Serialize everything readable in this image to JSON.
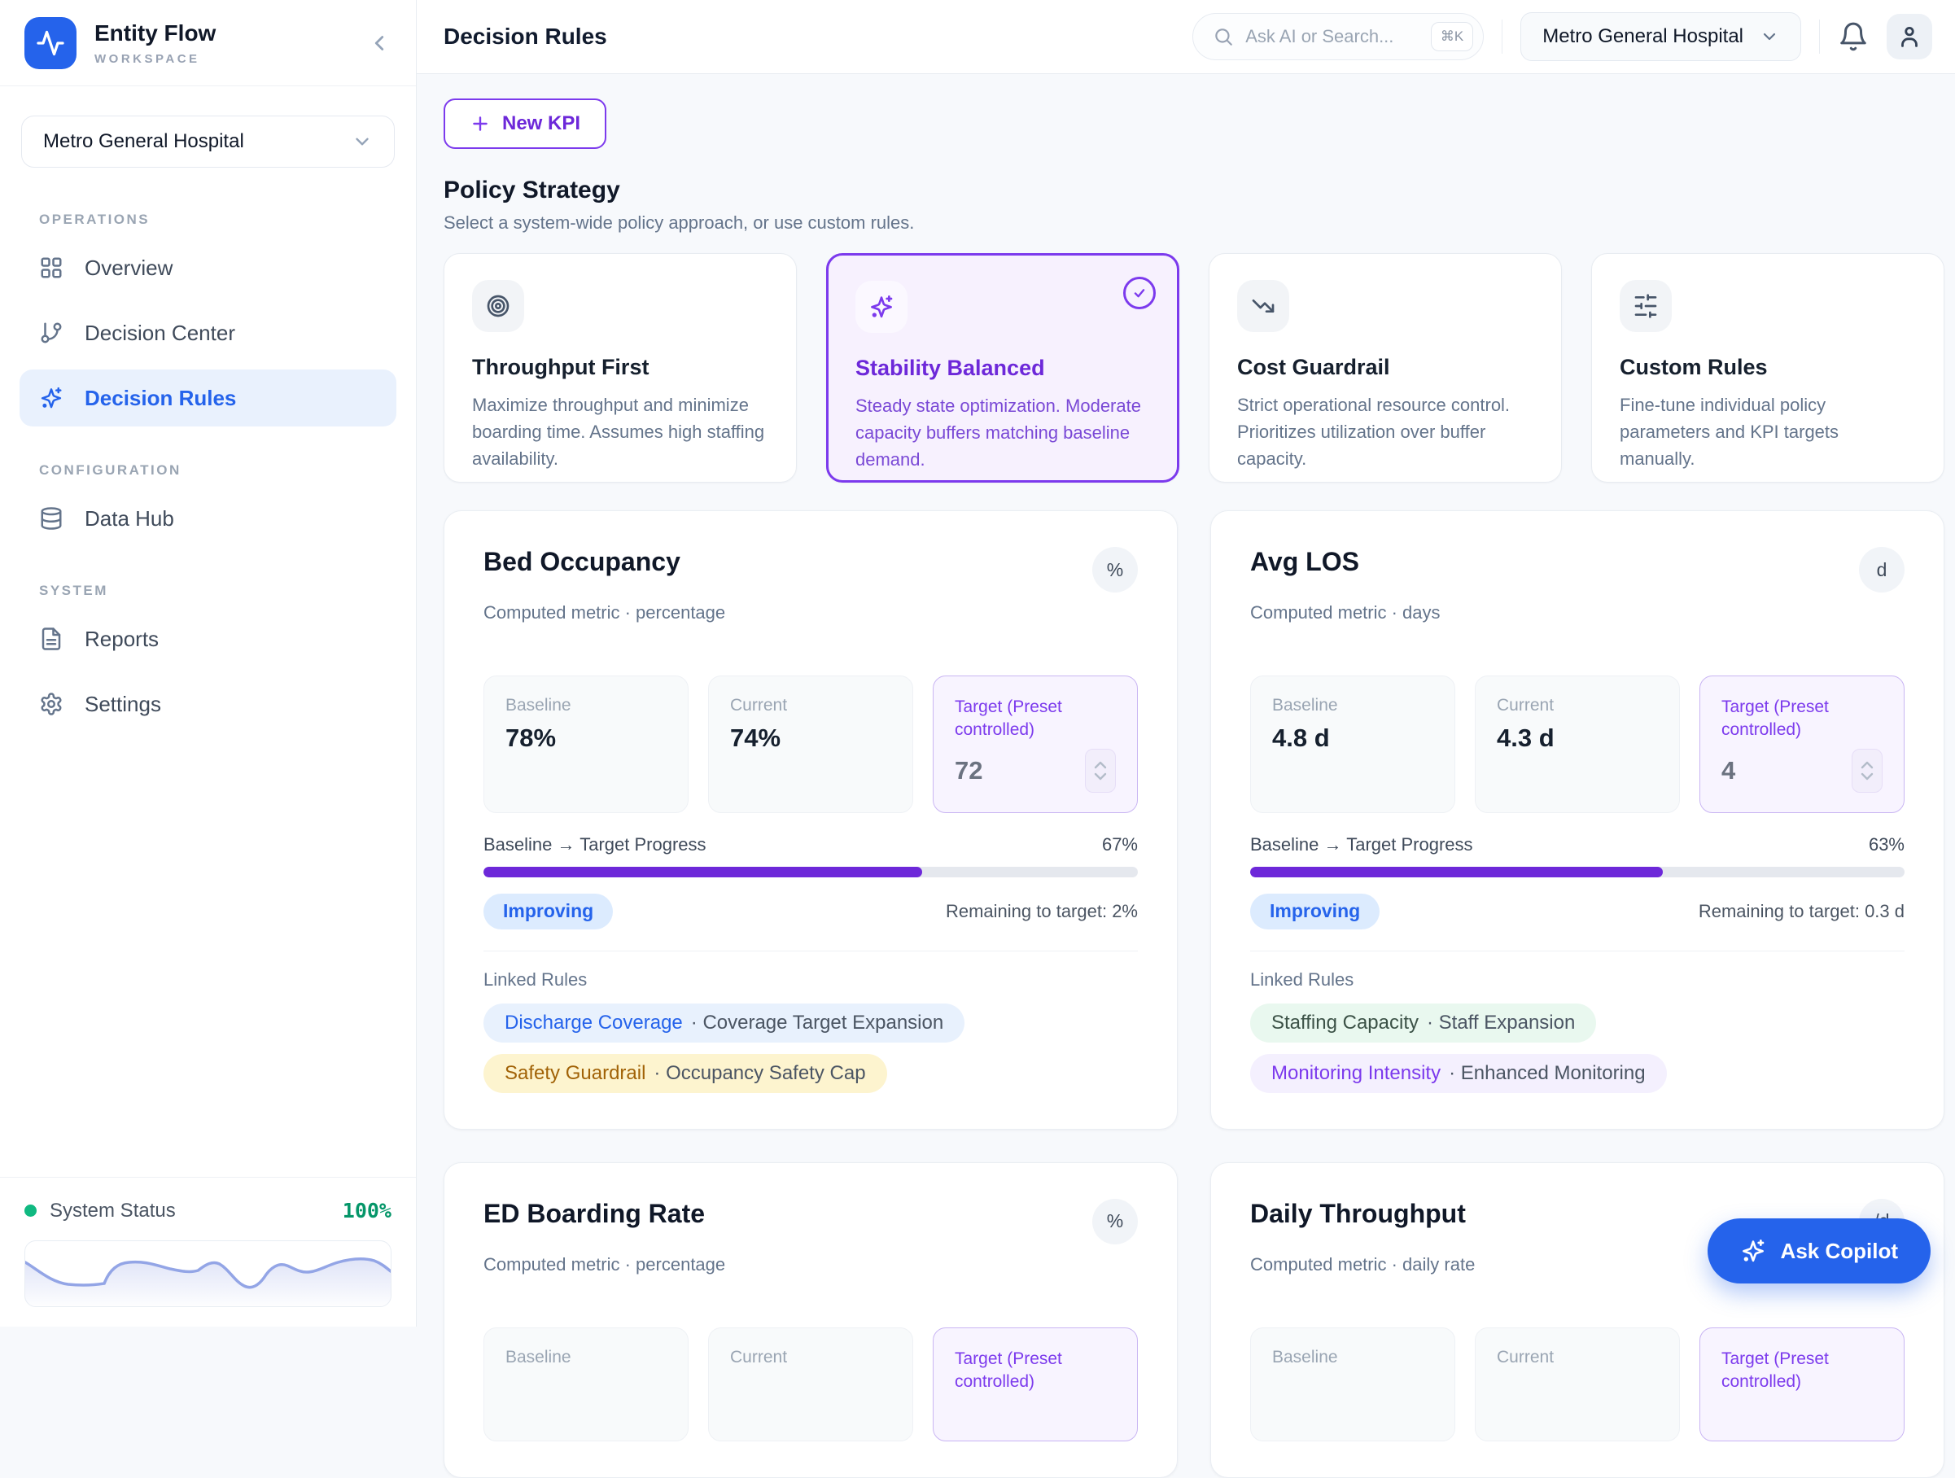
{
  "brand": {
    "name": "Entity Flow",
    "subtitle": "WORKSPACE"
  },
  "workspace_selector": {
    "value": "Metro General Hospital"
  },
  "nav": {
    "sections": [
      {
        "label": "OPERATIONS",
        "items": [
          {
            "label": "Overview"
          },
          {
            "label": "Decision Center"
          },
          {
            "label": "Decision Rules"
          }
        ]
      },
      {
        "label": "CONFIGURATION",
        "items": [
          {
            "label": "Data Hub"
          }
        ]
      },
      {
        "label": "SYSTEM",
        "items": [
          {
            "label": "Reports"
          },
          {
            "label": "Settings"
          }
        ]
      }
    ]
  },
  "system_status": {
    "label": "System Status",
    "value": "100%"
  },
  "topbar": {
    "title": "Decision Rules",
    "search_placeholder": "Ask AI or Search...",
    "search_shortcut": "⌘K",
    "org": "Metro General Hospital"
  },
  "actions": {
    "new_kpi": "New KPI",
    "ask_copilot": "Ask Copilot"
  },
  "policy": {
    "title": "Policy Strategy",
    "subtitle": "Select a system-wide policy approach, or use custom rules.",
    "presets": [
      {
        "title": "Throughput First",
        "description": "Maximize throughput and minimize boarding time. Assumes high staffing availability.",
        "selected": false
      },
      {
        "title": "Stability Balanced",
        "description": "Steady state optimization. Moderate capacity buffers matching baseline demand.",
        "selected": true
      },
      {
        "title": "Cost Guardrail",
        "description": "Strict operational resource control. Prioritizes utilization over buffer capacity.",
        "selected": false
      },
      {
        "title": "Custom Rules",
        "description": "Fine-tune individual policy parameters and KPI targets manually.",
        "selected": false
      }
    ]
  },
  "kpis": [
    {
      "title": "Bed Occupancy",
      "unit": "%",
      "subtitle": "Computed metric · percentage",
      "baseline_label": "Baseline",
      "baseline": "78%",
      "current_label": "Current",
      "current": "74%",
      "target_label": "Target (Preset controlled)",
      "target": "72",
      "progress_label": "Baseline → Target Progress",
      "progress": "67%",
      "progress_pct": 67,
      "status": "Improving",
      "remaining": "Remaining to target: 2%",
      "linked_rules_label": "Linked Rules",
      "rules": [
        {
          "name": "Discharge Coverage",
          "detail": "· Coverage Target Expansion",
          "tone": "blue"
        },
        {
          "name": "Safety Guardrail",
          "detail": "· Occupancy Safety Cap",
          "tone": "amber"
        }
      ]
    },
    {
      "title": "Avg LOS",
      "unit": "d",
      "subtitle": "Computed metric · days",
      "baseline_label": "Baseline",
      "baseline": "4.8 d",
      "current_label": "Current",
      "current": "4.3 d",
      "target_label": "Target (Preset controlled)",
      "target": "4",
      "progress_label": "Baseline → Target Progress",
      "progress": "63%",
      "progress_pct": 63,
      "status": "Improving",
      "remaining": "Remaining to target: 0.3 d",
      "linked_rules_label": "Linked Rules",
      "rules": [
        {
          "name": "Staffing Capacity",
          "detail": "· Staff Expansion",
          "tone": "green"
        },
        {
          "name": "Monitoring Intensity",
          "detail": "· Enhanced Monitoring",
          "tone": "purple"
        }
      ]
    },
    {
      "title": "ED Boarding Rate",
      "unit": "%",
      "subtitle": "Computed metric · percentage",
      "baseline_label": "Baseline",
      "current_label": "Current",
      "target_label": "Target (Preset controlled)"
    },
    {
      "title": "Daily Throughput",
      "unit": "/d",
      "subtitle": "Computed metric · daily rate",
      "baseline_label": "Baseline",
      "current_label": "Current",
      "target_label": "Target (Preset controlled)"
    }
  ],
  "colors": {
    "accent_blue": "#2563eb",
    "accent_violet": "#6d28d9",
    "selected_border": "#7c3aed",
    "status_green": "#059669"
  }
}
